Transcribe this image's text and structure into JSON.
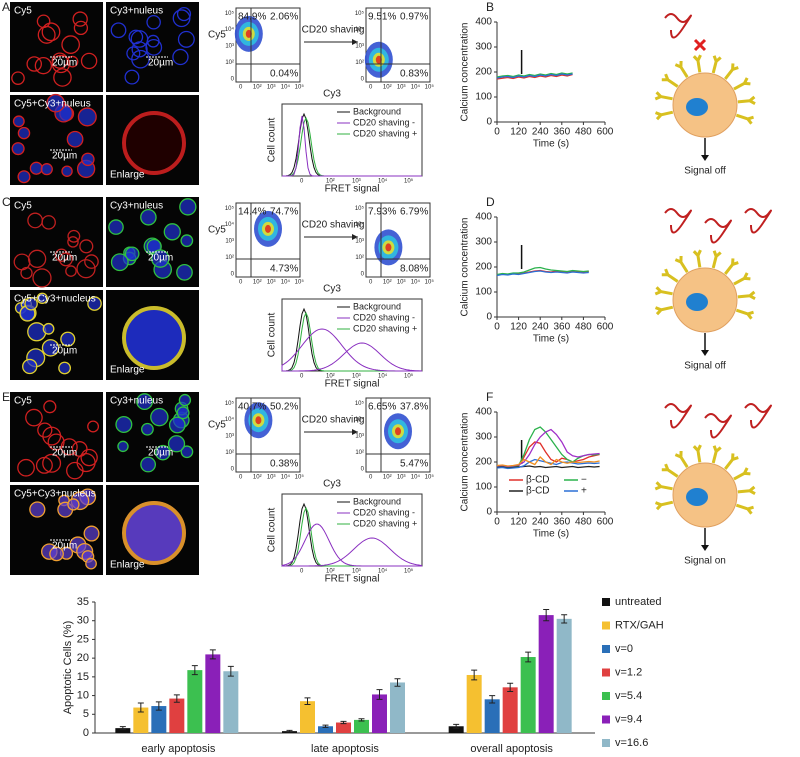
{
  "figure": {
    "scale_bar": "20µm",
    "log_ticks": [
      "0",
      "10²",
      "10³",
      "10⁴",
      "10⁵"
    ],
    "flow_y_axis": "Cy5",
    "flow_x_axis": "Cy3",
    "shaving": "CD20 shaving",
    "hist_y_axis": "Cell count",
    "hist_x_axis": "FRET signal",
    "hist_legend": [
      "Background",
      "CD20 shaving -",
      "CD20 shaving +"
    ],
    "rows": [
      {
        "label": "A",
        "chart_label": "B",
        "micro_labels": [
          "Cy5",
          "Cy3+nuleus",
          "Cy5+Cy3+nuleus",
          "Enlarge"
        ],
        "flow_before": [
          "84.9%",
          "2.06%",
          "0.04%"
        ],
        "flow_after": [
          "9.51%",
          "0.97%",
          "0.83%"
        ],
        "signal": "Signal off"
      },
      {
        "label": "C",
        "chart_label": "D",
        "micro_labels": [
          "Cy5",
          "Cy3+nuleus",
          "Cy5+Cy3+nucleus",
          "Enlarge"
        ],
        "flow_before": [
          "14.4%",
          "74.7%",
          "4.73%"
        ],
        "flow_after": [
          "7.93%",
          "6.79%",
          "8.08%"
        ],
        "signal": "Signal off"
      },
      {
        "label": "E",
        "chart_label": "F",
        "micro_labels": [
          "Cy5",
          "Cy3+nuleus",
          "Cy5+Cy3+nucleus",
          "Enlarge"
        ],
        "flow_before": [
          "40.7%",
          "50.2%",
          "0.38%"
        ],
        "flow_after": [
          "6.65%",
          "37.8%",
          "5.47%"
        ],
        "signal": "Signal on"
      }
    ]
  },
  "chart_data": [
    {
      "type": "line",
      "y_label": "Calcium concentration",
      "x_label": "Time (s)",
      "xlim": [
        0,
        600
      ],
      "xticks": [
        0,
        120,
        240,
        360,
        480,
        600
      ],
      "ylim": [
        0,
        400
      ],
      "yticks": [
        0,
        100,
        200,
        300,
        400
      ],
      "x": [
        0,
        30,
        60,
        90,
        120,
        150,
        180,
        210,
        240,
        270,
        300,
        330,
        360,
        390,
        420
      ],
      "series": [
        {
          "color": "#e0302a",
          "values": [
            172,
            175,
            178,
            174,
            180,
            176,
            182,
            178,
            184,
            180,
            186,
            182,
            188,
            184,
            190
          ]
        },
        {
          "color": "#2bb24c",
          "values": [
            180,
            184,
            186,
            182,
            188,
            184,
            190,
            186,
            192,
            188,
            194,
            190,
            196,
            192,
            196
          ]
        },
        {
          "color": "#2a6fd6",
          "values": [
            176,
            180,
            182,
            178,
            184,
            180,
            186,
            182,
            188,
            184,
            190,
            186,
            192,
            188,
            192
          ]
        }
      ]
    },
    {
      "type": "line",
      "y_label": "Calcium concentration",
      "x_label": "Time (s)",
      "xlim": [
        0,
        600
      ],
      "xticks": [
        0,
        120,
        240,
        360,
        480,
        600
      ],
      "ylim": [
        0,
        400
      ],
      "yticks": [
        0,
        100,
        200,
        300,
        400
      ],
      "x": [
        0,
        30,
        60,
        90,
        120,
        150,
        180,
        210,
        240,
        270,
        300,
        330,
        360,
        390,
        420,
        450,
        480,
        510
      ],
      "series": [
        {
          "color": "#e0302a",
          "values": [
            168,
            172,
            170,
            174,
            172,
            176,
            180,
            184,
            186,
            182,
            180,
            184,
            182,
            180,
            184,
            182,
            180,
            182
          ]
        },
        {
          "color": "#2bb24c",
          "values": [
            170,
            174,
            172,
            176,
            176,
            180,
            188,
            196,
            198,
            192,
            188,
            186,
            184,
            182,
            186,
            184,
            182,
            184
          ]
        },
        {
          "color": "#2a6fd6",
          "values": [
            166,
            170,
            168,
            172,
            170,
            174,
            178,
            182,
            184,
            180,
            178,
            180,
            178,
            176,
            180,
            178,
            176,
            178
          ]
        }
      ]
    },
    {
      "type": "line",
      "y_label": "Calcium concentration",
      "x_label": "Time (s)",
      "xlim": [
        0,
        600
      ],
      "xticks": [
        0,
        120,
        240,
        360,
        480,
        600
      ],
      "ylim": [
        0,
        400
      ],
      "yticks": [
        0,
        100,
        200,
        300,
        400
      ],
      "x": [
        0,
        30,
        60,
        90,
        120,
        150,
        180,
        210,
        240,
        270,
        300,
        330,
        360,
        390,
        420,
        450,
        480,
        510,
        540,
        570
      ],
      "series": [
        {
          "name": "β-CD",
          "color": "#e0302a",
          "values": [
            180,
            182,
            178,
            180,
            184,
            220,
            260,
            280,
            275,
            240,
            210,
            200,
            215,
            210,
            200,
            205,
            210,
            220,
            225,
            230
          ]
        },
        {
          "name": "−",
          "color": "#2bb24c",
          "values": [
            182,
            184,
            180,
            182,
            186,
            230,
            290,
            330,
            340,
            320,
            290,
            260,
            230,
            210,
            200,
            215,
            225,
            230,
            228,
            232
          ]
        },
        {
          "name": "β-CD",
          "color": "#222222",
          "values": [
            178,
            180,
            176,
            178,
            180,
            182,
            184,
            180,
            182,
            178,
            180,
            182,
            178,
            180,
            182,
            178,
            180,
            182,
            180,
            182
          ]
        },
        {
          "name": "+",
          "color": "#2a6fd6",
          "values": [
            176,
            178,
            174,
            176,
            178,
            185,
            200,
            210,
            205,
            200,
            195,
            190,
            198,
            200,
            196,
            192,
            194,
            196,
            194,
            196
          ]
        },
        {
          "color": "#a030c8",
          "values": [
            184,
            186,
            182,
            184,
            188,
            200,
            230,
            270,
            300,
            320,
            330,
            310,
            280,
            240,
            225,
            220,
            225,
            230,
            232,
            234
          ]
        },
        {
          "color": "#f09020",
          "values": [
            186,
            188,
            184,
            186,
            190,
            210,
            200,
            190,
            220,
            200,
            190,
            210,
            200,
            195,
            200,
            198,
            200,
            202,
            200,
            204
          ]
        }
      ]
    },
    {
      "type": "bar",
      "y_label": "Apoptotic Cells (%)",
      "ylim": [
        0,
        35
      ],
      "yticks": [
        0,
        5,
        10,
        15,
        20,
        25,
        30,
        35
      ],
      "categories": [
        "early apoptosis",
        "late apoptosis",
        "overall apoptosis"
      ],
      "series": [
        {
          "name": "untreated",
          "color": "#111111",
          "values": [
            1.3,
            0.5,
            1.8
          ],
          "errors": [
            0.4,
            0.2,
            0.5
          ]
        },
        {
          "name": "RTX/GAH",
          "color": "#f5c030",
          "values": [
            6.8,
            8.5,
            15.5
          ],
          "errors": [
            1.2,
            0.9,
            1.3
          ]
        },
        {
          "name": "v=0",
          "color": "#2a6fb8",
          "values": [
            7.2,
            1.8,
            9.0
          ],
          "errors": [
            1.1,
            0.3,
            1.0
          ]
        },
        {
          "name": "v=1.2",
          "color": "#e04040",
          "values": [
            9.2,
            2.8,
            12.2
          ],
          "errors": [
            1.0,
            0.3,
            1.1
          ]
        },
        {
          "name": "v=5.4",
          "color": "#3cc050",
          "values": [
            16.8,
            3.5,
            20.3
          ],
          "errors": [
            1.2,
            0.3,
            1.3
          ]
        },
        {
          "name": "v=9.4",
          "color": "#8a20b8",
          "values": [
            21.0,
            10.3,
            31.5
          ],
          "errors": [
            1.2,
            1.3,
            1.5
          ]
        },
        {
          "name": "v=16.6",
          "color": "#90b8c8",
          "values": [
            16.5,
            13.5,
            30.5
          ],
          "errors": [
            1.3,
            1.0,
            1.1
          ]
        }
      ]
    }
  ]
}
